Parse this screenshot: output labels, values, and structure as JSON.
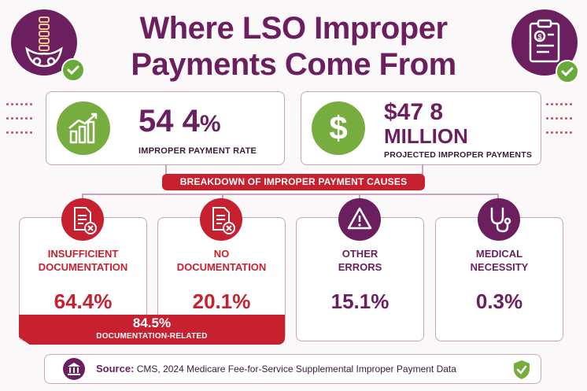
{
  "title": {
    "line1": "Where LSO Improper",
    "line2": "Payments Come From"
  },
  "corner_icons": {
    "left": "spine-pelvis-icon",
    "right": "clipboard-dollar-icon",
    "badge": "check-icon"
  },
  "stats": [
    {
      "value_main": "54 4",
      "value_suffix": "%",
      "label": "IMPROPER PAYMENT RATE",
      "icon": "bar-chart-growth-icon"
    },
    {
      "value_main": "$47 8",
      "value_line2": "MILLION",
      "label": "PROJECTED IMPROPER PAYMENTS",
      "icon": "dollar-icon"
    }
  ],
  "banner": "BREAKDOWN OF IMPROPER PAYMENT CAUSES",
  "causes": [
    {
      "line1": "INSUFFICIENT",
      "line2": "DOCUMENTATION",
      "pct": "64.4%",
      "color": "#c7202e",
      "icon": "document-x-icon"
    },
    {
      "line1": "NO",
      "line2": "DOCUMENTATION",
      "pct": "20.1%",
      "color": "#c7202e",
      "icon": "document-x-icon"
    },
    {
      "line1": "OTHER",
      "line2": "ERRORS",
      "pct": "15.1%",
      "color": "#6b1f5f",
      "icon": "warning-triangle-icon"
    },
    {
      "line1": "MEDICAL",
      "line2": "NECESSITY",
      "pct": "0.3%",
      "color": "#6b1f5f",
      "icon": "stethoscope-icon"
    }
  ],
  "documentation_related": {
    "pct": "84.5%",
    "label": "DOCUMENTATION-RELATED"
  },
  "source": {
    "label": "Source:",
    "text": "CMS, 2024 Medicare Fee-for-Service Supplemental Improper Payment Data",
    "icon": "government-building-icon",
    "badge_icon": "shield-check-icon"
  },
  "colors": {
    "purple": "#6b1f5f",
    "red": "#c7202e",
    "green": "#77ad3e"
  }
}
